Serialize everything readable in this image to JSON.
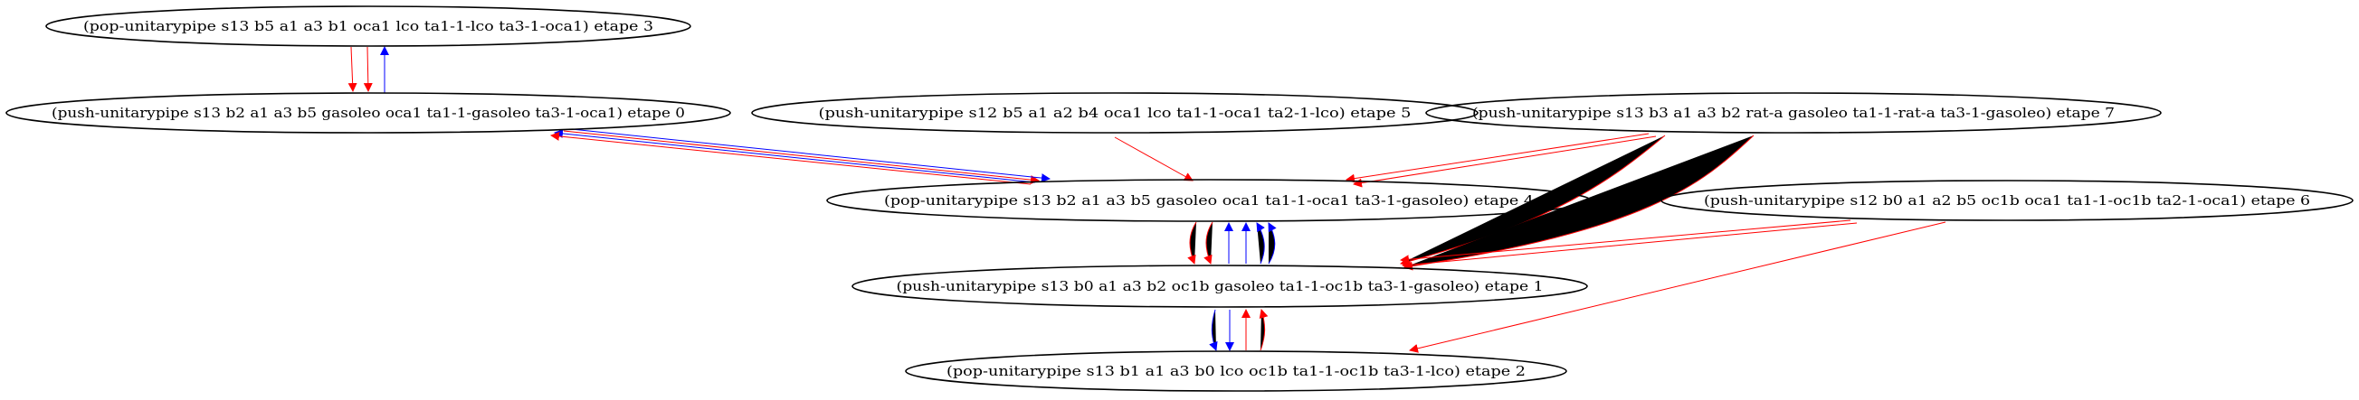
{
  "colors": {
    "red": "#ff0000",
    "blue": "#0000ff",
    "node_stroke": "#000000"
  },
  "nodes": [
    {
      "id": "n3",
      "label": "(pop-unitarypipe s13 b5 a1 a3 b1 oca1 lco ta1-1-lco ta3-1-oca1) etape 3"
    },
    {
      "id": "n0",
      "label": "(push-unitarypipe s13 b2 a1 a3 b5 gasoleo oca1 ta1-1-gasoleo ta3-1-oca1) etape 0"
    },
    {
      "id": "n5",
      "label": "(push-unitarypipe s12 b5 a1 a2 b4 oca1 lco ta1-1-oca1 ta2-1-lco) etape 5"
    },
    {
      "id": "n7",
      "label": "(push-unitarypipe s13 b3 a1 a3 b2 rat-a gasoleo ta1-1-rat-a ta3-1-gasoleo) etape 7"
    },
    {
      "id": "n4",
      "label": "(pop-unitarypipe s13 b2 a1 a3 b5 gasoleo oca1 ta1-1-oca1 ta3-1-gasoleo) etape 4"
    },
    {
      "id": "n6",
      "label": "(push-unitarypipe s12 b0 a1 a2 b5 oc1b oca1 ta1-1-oc1b ta2-1-oca1) etape 6"
    },
    {
      "id": "n1",
      "label": "(push-unitarypipe s13 b0 a1 a3 b2 oc1b gasoleo ta1-1-oc1b ta3-1-gasoleo) etape 1"
    },
    {
      "id": "n2",
      "label": "(pop-unitarypipe s13 b1 a1 a3 b0 lco oc1b ta1-1-oc1b ta3-1-lco) etape 2"
    }
  ],
  "edges": [
    {
      "from": "n3",
      "to": "n0",
      "color": "red"
    },
    {
      "from": "n3",
      "to": "n0",
      "color": "red"
    },
    {
      "from": "n0",
      "to": "n3",
      "color": "blue"
    },
    {
      "from": "n0",
      "to": "n4",
      "color": "red"
    },
    {
      "from": "n0",
      "to": "n4",
      "color": "blue"
    },
    {
      "from": "n4",
      "to": "n0",
      "color": "blue"
    },
    {
      "from": "n4",
      "to": "n0",
      "color": "red"
    },
    {
      "from": "n5",
      "to": "n4",
      "color": "red"
    },
    {
      "from": "n7",
      "to": "n4",
      "color": "red"
    },
    {
      "from": "n7",
      "to": "n4",
      "color": "red"
    },
    {
      "from": "n7",
      "to": "n1",
      "color": "red"
    },
    {
      "from": "n7",
      "to": "n1",
      "color": "red"
    },
    {
      "from": "n4",
      "to": "n1",
      "color": "red"
    },
    {
      "from": "n4",
      "to": "n1",
      "color": "red"
    },
    {
      "from": "n1",
      "to": "n4",
      "color": "blue"
    },
    {
      "from": "n1",
      "to": "n4",
      "color": "blue"
    },
    {
      "from": "n1",
      "to": "n4",
      "color": "blue"
    },
    {
      "from": "n1",
      "to": "n4",
      "color": "blue"
    },
    {
      "from": "n6",
      "to": "n1",
      "color": "red"
    },
    {
      "from": "n6",
      "to": "n1",
      "color": "red"
    },
    {
      "from": "n6",
      "to": "n2",
      "color": "red"
    },
    {
      "from": "n1",
      "to": "n2",
      "color": "blue"
    },
    {
      "from": "n1",
      "to": "n2",
      "color": "blue"
    },
    {
      "from": "n2",
      "to": "n1",
      "color": "red"
    },
    {
      "from": "n2",
      "to": "n1",
      "color": "red"
    }
  ]
}
